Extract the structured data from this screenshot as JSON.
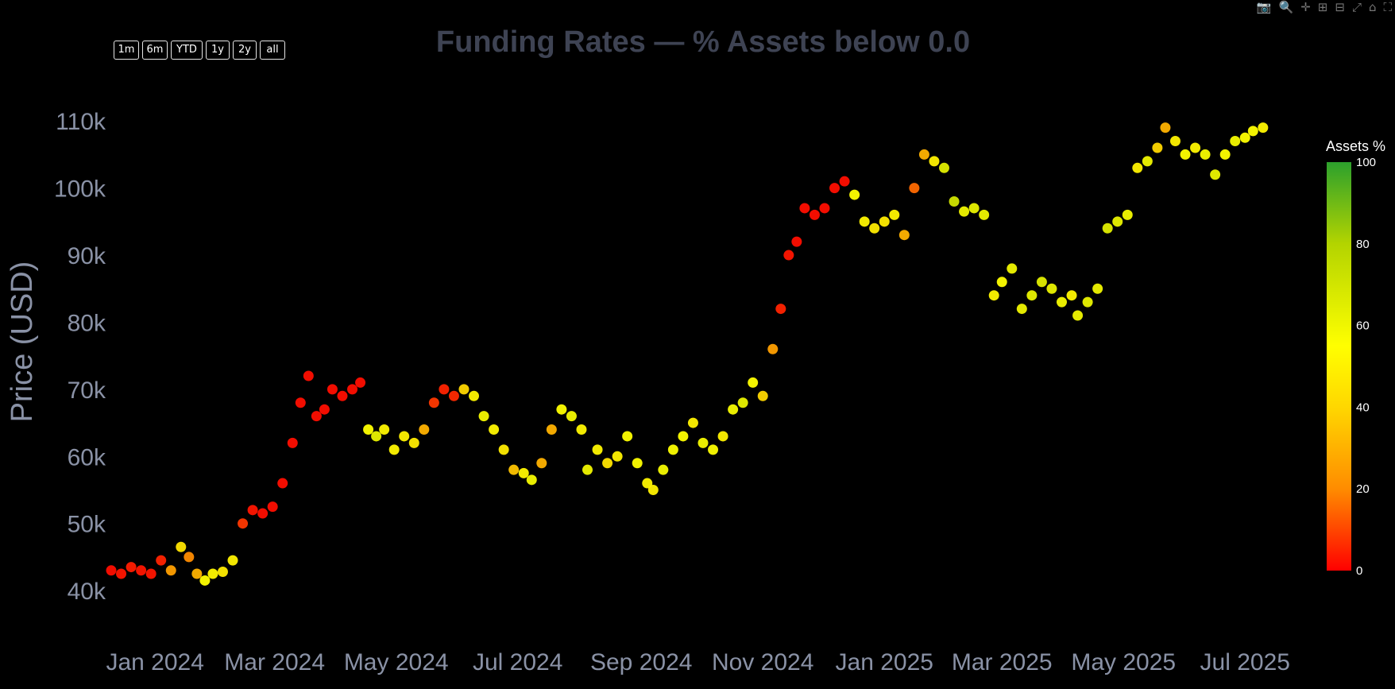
{
  "modebar": {
    "icons": [
      "camera-icon",
      "zoom-icon",
      "pan-icon",
      "zoom-in-icon",
      "zoom-out-icon",
      "autoscale-icon",
      "home-icon",
      "fullscreen-icon"
    ],
    "glyphs": [
      "📷",
      "🔍",
      "✛",
      "⊞",
      "⊟",
      "⤢",
      "⌂",
      "⛶"
    ]
  },
  "range_buttons": [
    "1m",
    "6m",
    "YTD",
    "1y",
    "2y",
    "all"
  ],
  "chart_data": {
    "type": "scatter",
    "title": "Funding Rates — % Assets below 0.0",
    "ylabel": "Price (USD)",
    "xlabel": "",
    "x_ticks": [
      "Jan 2024",
      "Mar 2024",
      "May 2024",
      "Jul 2024",
      "Sep 2024",
      "Nov 2024",
      "Jan 2025",
      "Mar 2025",
      "May 2025",
      "Jul 2025"
    ],
    "x_tick_dates": [
      "2024-01-01",
      "2024-03-01",
      "2024-05-01",
      "2024-07-01",
      "2024-09-01",
      "2024-11-01",
      "2025-01-01",
      "2025-03-01",
      "2025-05-01",
      "2025-07-01"
    ],
    "x_range": [
      "2023-12-10",
      "2025-07-30"
    ],
    "y_ticks": [
      40000,
      50000,
      60000,
      70000,
      80000,
      90000,
      100000,
      110000
    ],
    "y_tick_labels": [
      "40k",
      "50k",
      "60k",
      "70k",
      "80k",
      "90k",
      "100k",
      "110k"
    ],
    "ylim": [
      38000,
      115000
    ],
    "grid": false,
    "colorbar": {
      "title": "Assets %",
      "min": 0,
      "max": 100,
      "ticks": [
        0,
        20,
        40,
        60,
        80,
        100
      ],
      "colors": [
        "#ff0000",
        "#ff8c00",
        "#ffd700",
        "#ffff00",
        "#b3d400",
        "#2ca02c"
      ]
    },
    "series": [
      {
        "x": [
          "2023-12-10",
          "2023-12-15",
          "2023-12-20",
          "2023-12-25",
          "2023-12-30",
          "2024-01-04",
          "2024-01-09",
          "2024-01-14",
          "2024-01-18",
          "2024-01-22",
          "2024-01-26",
          "2024-01-30",
          "2024-02-04",
          "2024-02-09",
          "2024-02-14",
          "2024-02-19",
          "2024-02-24",
          "2024-02-29",
          "2024-03-05",
          "2024-03-10",
          "2024-03-14",
          "2024-03-18",
          "2024-03-22",
          "2024-03-26",
          "2024-03-30",
          "2024-04-04",
          "2024-04-09",
          "2024-04-13",
          "2024-04-17",
          "2024-04-21",
          "2024-04-25",
          "2024-04-30",
          "2024-05-05",
          "2024-05-10",
          "2024-05-15",
          "2024-05-20",
          "2024-05-25",
          "2024-05-30",
          "2024-06-04",
          "2024-06-09",
          "2024-06-14",
          "2024-06-19",
          "2024-06-24",
          "2024-06-29",
          "2024-07-04",
          "2024-07-08",
          "2024-07-13",
          "2024-07-18",
          "2024-07-23",
          "2024-07-28",
          "2024-08-02",
          "2024-08-05",
          "2024-08-10",
          "2024-08-15",
          "2024-08-20",
          "2024-08-25",
          "2024-08-30",
          "2024-09-04",
          "2024-09-07",
          "2024-09-12",
          "2024-09-17",
          "2024-09-22",
          "2024-09-27",
          "2024-10-02",
          "2024-10-07",
          "2024-10-12",
          "2024-10-17",
          "2024-10-22",
          "2024-10-27",
          "2024-11-01",
          "2024-11-06",
          "2024-11-10",
          "2024-11-14",
          "2024-11-18",
          "2024-11-22",
          "2024-11-27",
          "2024-12-02",
          "2024-12-07",
          "2024-12-12",
          "2024-12-17",
          "2024-12-22",
          "2024-12-27",
          "2025-01-01",
          "2025-01-06",
          "2025-01-11",
          "2025-01-16",
          "2025-01-21",
          "2025-01-26",
          "2025-01-31",
          "2025-02-05",
          "2025-02-10",
          "2025-02-15",
          "2025-02-20",
          "2025-02-25",
          "2025-03-01",
          "2025-03-06",
          "2025-03-11",
          "2025-03-16",
          "2025-03-21",
          "2025-03-26",
          "2025-03-31",
          "2025-04-05",
          "2025-04-08",
          "2025-04-13",
          "2025-04-18",
          "2025-04-23",
          "2025-04-28",
          "2025-05-03",
          "2025-05-08",
          "2025-05-13",
          "2025-05-18",
          "2025-05-22",
          "2025-05-27",
          "2025-06-01",
          "2025-06-06",
          "2025-06-11",
          "2025-06-16",
          "2025-06-21",
          "2025-06-26",
          "2025-07-01",
          "2025-07-05",
          "2025-07-10"
        ],
        "y": [
          43000,
          42500,
          43500,
          43000,
          42500,
          44500,
          43000,
          46500,
          45000,
          42500,
          41500,
          42500,
          42800,
          44500,
          50000,
          52000,
          51500,
          52500,
          56000,
          62000,
          68000,
          72000,
          66000,
          67000,
          70000,
          69000,
          70000,
          71000,
          64000,
          63000,
          64000,
          61000,
          63000,
          62000,
          64000,
          68000,
          70000,
          69000,
          70000,
          69000,
          66000,
          64000,
          61000,
          58000,
          57500,
          56500,
          59000,
          64000,
          67000,
          66000,
          64000,
          58000,
          61000,
          59000,
          60000,
          63000,
          59000,
          56000,
          55000,
          58000,
          61000,
          63000,
          65000,
          62000,
          61000,
          63000,
          67000,
          68000,
          71000,
          69000,
          76000,
          82000,
          90000,
          92000,
          97000,
          96000,
          97000,
          100000,
          101000,
          99000,
          95000,
          94000,
          95000,
          96000,
          93000,
          100000,
          105000,
          104000,
          103000,
          98000,
          96500,
          97000,
          96000,
          84000,
          86000,
          88000,
          82000,
          84000,
          86000,
          85000,
          83000,
          84000,
          81000,
          83000,
          85000,
          94000,
          95000,
          96000,
          103000,
          104000,
          106000,
          109000,
          107000,
          105000,
          106000,
          105000,
          102000,
          105000,
          107000,
          107500,
          108500,
          109000
        ],
        "pct": [
          2,
          3,
          4,
          3,
          3,
          5,
          25,
          45,
          20,
          30,
          55,
          52,
          48,
          50,
          8,
          3,
          2,
          2,
          2,
          2,
          2,
          2,
          2,
          2,
          2,
          2,
          2,
          2,
          55,
          62,
          52,
          52,
          50,
          48,
          30,
          8,
          5,
          6,
          40,
          52,
          58,
          52,
          48,
          35,
          52,
          58,
          30,
          30,
          55,
          58,
          52,
          60,
          52,
          45,
          50,
          55,
          55,
          52,
          50,
          58,
          56,
          55,
          50,
          58,
          56,
          50,
          58,
          62,
          55,
          40,
          25,
          5,
          3,
          2,
          2,
          2,
          2,
          2,
          2,
          55,
          52,
          48,
          48,
          52,
          30,
          15,
          30,
          50,
          65,
          70,
          60,
          62,
          60,
          52,
          55,
          60,
          60,
          62,
          65,
          62,
          58,
          52,
          60,
          62,
          60,
          65,
          62,
          58,
          50,
          60,
          40,
          30,
          50,
          55,
          52,
          58,
          62,
          55,
          58,
          55,
          55,
          52
        ]
      }
    ]
  }
}
